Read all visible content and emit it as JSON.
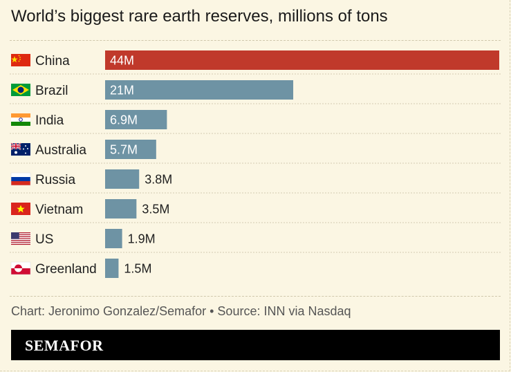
{
  "header": {
    "title": "World’s biggest rare earth reserves, millions of tons"
  },
  "footer": {
    "source": "Chart: Jeronimo Gonzalez/Semafor • Source: INN via Nasdaq",
    "brand": "SEMAFOR"
  },
  "colors": {
    "highlight": "#c0392b",
    "bar": "#6e93a4",
    "background": "#fbf6e3"
  },
  "chart_data": {
    "type": "bar",
    "orientation": "horizontal",
    "title": "World’s biggest rare earth reserves, millions of tons",
    "unit": "millions of tons",
    "categories": [
      "China",
      "Brazil",
      "India",
      "Australia",
      "Russia",
      "Vietnam",
      "US",
      "Greenland"
    ],
    "values": [
      44,
      21,
      6.9,
      5.7,
      3.8,
      3.5,
      1.9,
      1.5
    ],
    "value_labels": [
      "44M",
      "21M",
      "6.9M",
      "5.7M",
      "3.8M",
      "3.5M",
      "1.9M",
      "1.5M"
    ],
    "flags": [
      "china-flag-icon",
      "brazil-flag-icon",
      "india-flag-icon",
      "australia-flag-icon",
      "russia-flag-icon",
      "vietnam-flag-icon",
      "us-flag-icon",
      "greenland-flag-icon"
    ],
    "highlighted": [
      "China"
    ],
    "xlim": [
      0,
      44
    ],
    "grid": false
  }
}
